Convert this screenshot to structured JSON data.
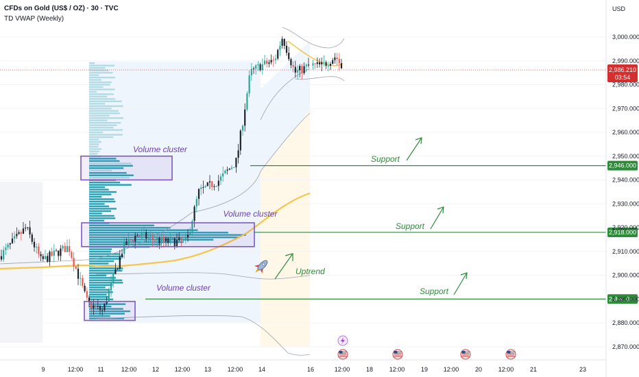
{
  "header": {
    "symbol_title": "CFDs on Gold (US$ / OZ) · 30 · TVC",
    "indicator": "TD VWAP (Weekly)"
  },
  "currency": "USD",
  "last_price": {
    "value": "2,986.210",
    "countdown": "03:54"
  },
  "colors": {
    "up": "#26a69a",
    "down": "#ef5350",
    "candle_dark": "#1e222d",
    "vwap": "#f7c548",
    "band": "#9aa3ae",
    "support": "#2e8b3a",
    "cluster_box": "#7e57c2",
    "cluster_text": "#6a3fb0",
    "volume_bar": "#26a1b3",
    "volume_bar_light": "#b3dbe4",
    "price_marker": "#d32f2f"
  },
  "chart_data": {
    "type": "candlestick",
    "title": "CFDs on Gold (US$ / OZ) · 30 · TVC",
    "indicator": "TD VWAP (Weekly)",
    "y_axis": {
      "unit": "USD",
      "ylim": [
        2863,
        3008
      ],
      "ticks": [
        "3,000.000",
        "2,990.000",
        "2,980.000",
        "2,970.000",
        "2,960.000",
        "2,950.000",
        "2,940.000",
        "2,930.000",
        "2,920.000",
        "2,910.000",
        "2,900.000",
        "2,890.000",
        "2,880.000",
        "2,870.000"
      ],
      "tick_values": [
        3000,
        2990,
        2980,
        2970,
        2960,
        2950,
        2940,
        2930,
        2920,
        2910,
        2900,
        2890,
        2880,
        2870
      ]
    },
    "x_axis": {
      "ticks": [
        "9",
        "12:00",
        "11",
        "12:00",
        "12",
        "12:00",
        "13",
        "12:00",
        "14",
        "16",
        "12:00",
        "18",
        "12:00",
        "19",
        "12:00",
        "20",
        "12:00",
        "21",
        "23"
      ]
    },
    "price_path": [
      [
        "9",
        2906
      ],
      [
        "9 12:00",
        2912
      ],
      [
        "11",
        2888
      ],
      [
        "11 12:00",
        2913
      ],
      [
        "12",
        2916
      ],
      [
        "12 12:00",
        2913
      ],
      [
        "13",
        2930
      ],
      [
        "13 12:00",
        2946
      ],
      [
        "14",
        2988
      ],
      [
        "16",
        2986
      ],
      [
        "16 12:00",
        2988
      ]
    ],
    "support_levels": [
      {
        "label": "Support",
        "price": 2946,
        "tag": "2,946.000"
      },
      {
        "label": "Support",
        "price": 2918,
        "tag": "2,918.000"
      },
      {
        "label": "Support",
        "price": 2890,
        "tag": "2,890.000"
      }
    ],
    "volume_clusters": [
      {
        "label": "Volume cluster",
        "price_low": 2940,
        "price_high": 2950
      },
      {
        "label": "Volume cluster",
        "price_low": 2912,
        "price_high": 2922
      },
      {
        "label": "Volume cluster",
        "price_low": 2881,
        "price_high": 2889
      }
    ],
    "annotations": [
      "Uptrend"
    ],
    "last_price": 2986.21
  }
}
